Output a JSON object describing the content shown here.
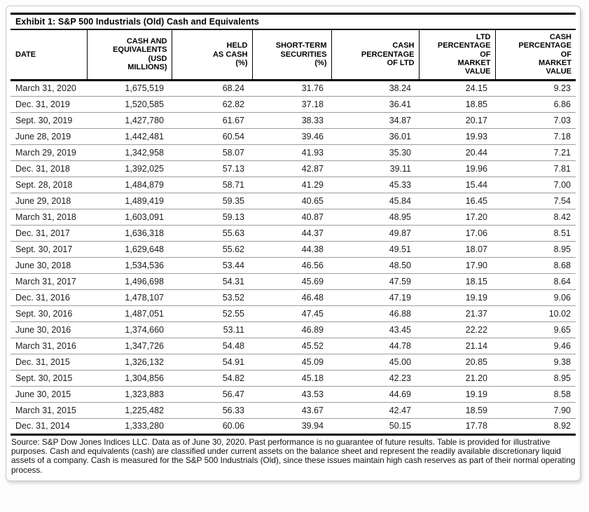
{
  "exhibit": {
    "title": "Exhibit 1: S&P 500 Industrials (Old) Cash and Equivalents",
    "columns": [
      {
        "id": "date",
        "label": "DATE"
      },
      {
        "id": "cash-and-equivalents",
        "label": "CASH AND\nEQUIVALENTS\n(USD\nMILLIONS)"
      },
      {
        "id": "held-as-cash",
        "label": "HELD\nAS CASH\n(%)"
      },
      {
        "id": "short-term-securities",
        "label": "SHORT-TERM\nSECURITIES\n(%)"
      },
      {
        "id": "cash-percentage-of-ltd",
        "label": "CASH\nPERCENTAGE\nOF LTD"
      },
      {
        "id": "ltd-percentage-of-market-value",
        "label": "LTD\nPERCENTAGE\nOF\nMARKET\nVALUE"
      },
      {
        "id": "cash-percentage-of-market-value",
        "label": "CASH\nPERCENTAGE\nOF\nMARKET\nVALUE"
      }
    ],
    "rows": [
      [
        "March 31, 2020",
        "1,675,519",
        "68.24",
        "31.76",
        "38.24",
        "24.15",
        "9.23"
      ],
      [
        "Dec. 31, 2019",
        "1,520,585",
        "62.82",
        "37.18",
        "36.41",
        "18.85",
        "6.86"
      ],
      [
        "Sept. 30, 2019",
        "1,427,780",
        "61.67",
        "38.33",
        "34.87",
        "20.17",
        "7.03"
      ],
      [
        "June 28, 2019",
        "1,442,481",
        "60.54",
        "39.46",
        "36.01",
        "19.93",
        "7.18"
      ],
      [
        "March 29, 2019",
        "1,342,958",
        "58.07",
        "41.93",
        "35.30",
        "20.44",
        "7.21"
      ],
      [
        "Dec. 31, 2018",
        "1,392,025",
        "57.13",
        "42.87",
        "39.11",
        "19.96",
        "7.81"
      ],
      [
        "Sept. 28, 2018",
        "1,484,879",
        "58.71",
        "41.29",
        "45.33",
        "15.44",
        "7.00"
      ],
      [
        "June 29, 2018",
        "1,489,419",
        "59.35",
        "40.65",
        "45.84",
        "16.45",
        "7.54"
      ],
      [
        "March 31, 2018",
        "1,603,091",
        "59.13",
        "40.87",
        "48.95",
        "17.20",
        "8.42"
      ],
      [
        "Dec. 31, 2017",
        "1,636,318",
        "55.63",
        "44.37",
        "49.87",
        "17.06",
        "8.51"
      ],
      [
        "Sept. 30, 2017",
        "1,629,648",
        "55.62",
        "44.38",
        "49.51",
        "18.07",
        "8.95"
      ],
      [
        "June 30, 2018",
        "1,534,536",
        "53.44",
        "46.56",
        "48.50",
        "17.90",
        "8.68"
      ],
      [
        "March 31, 2017",
        "1,496,698",
        "54.31",
        "45.69",
        "47.59",
        "18.15",
        "8.64"
      ],
      [
        "Dec. 31, 2016",
        "1,478,107",
        "53.52",
        "46.48",
        "47.19",
        "19.19",
        "9.06"
      ],
      [
        "Sept. 30, 2016",
        "1,487,051",
        "52.55",
        "47.45",
        "46.88",
        "21.37",
        "10.02"
      ],
      [
        "June 30, 2016",
        "1,374,660",
        "53.11",
        "46.89",
        "43.45",
        "22.22",
        "9.65"
      ],
      [
        "March 31, 2016",
        "1,347,726",
        "54.48",
        "45.52",
        "44.78",
        "21.14",
        "9.46"
      ],
      [
        "Dec. 31, 2015",
        "1,326,132",
        "54.91",
        "45.09",
        "45.00",
        "20.85",
        "9.38"
      ],
      [
        "Sept. 30, 2015",
        "1,304,856",
        "54.82",
        "45.18",
        "42.23",
        "21.20",
        "8.95"
      ],
      [
        "June 30, 2015",
        "1,323,883",
        "56.47",
        "43.53",
        "44.69",
        "19.19",
        "8.58"
      ],
      [
        "March 31, 2015",
        "1,225,482",
        "56.33",
        "43.67",
        "42.47",
        "18.59",
        "7.90"
      ],
      [
        "Dec. 31, 2014",
        "1,333,280",
        "60.06",
        "39.94",
        "50.15",
        "17.78",
        "8.92"
      ]
    ],
    "source_note": "Source: S&P Dow Jones Indices LLC. Data as of June 30, 2020. Past performance is no guarantee of future results. Table is provided for illustrative purposes. Cash and equivalents (cash) are classified under current assets on the balance sheet and represent the readily available discretionary liquid assets of a company. Cash is measured for the S&P 500 Industrials (Old), since these issues maintain high cash reserves as part of their normal operating process."
  }
}
